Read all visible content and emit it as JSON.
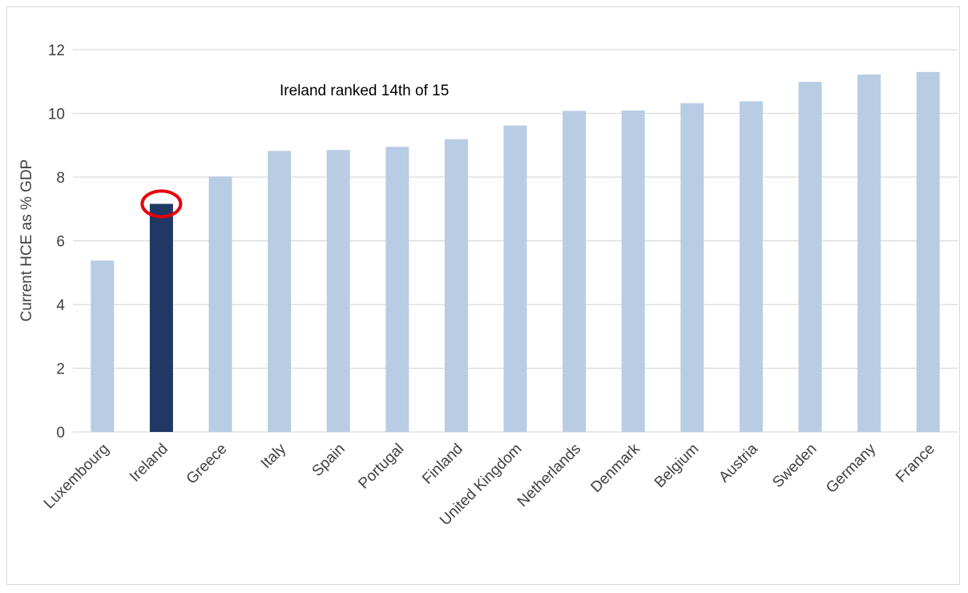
{
  "chart_data": {
    "type": "bar",
    "ylabel": "Current HCE as % GDP",
    "ylim": [
      0,
      12
    ],
    "yticks": [
      0,
      2,
      4,
      6,
      8,
      10,
      12
    ],
    "grid": true,
    "categories": [
      "Luxembourg",
      "Ireland",
      "Greece",
      "Italy",
      "Spain",
      "Portugal",
      "Finland",
      "United Kingdom",
      "Netherlands",
      "Denmark",
      "Belgium",
      "Austria",
      "Sweden",
      "Germany",
      "France"
    ],
    "values": [
      5.38,
      7.16,
      8.02,
      8.82,
      8.85,
      8.95,
      9.19,
      9.62,
      10.08,
      10.09,
      10.32,
      10.38,
      10.99,
      11.22,
      11.3
    ],
    "highlight_index": 1,
    "annotation": "Ireland ranked 14th of 15",
    "colors": {
      "bar": "#b8cce4",
      "highlight_bar": "#1f3864",
      "circle": "#e8000b"
    }
  }
}
